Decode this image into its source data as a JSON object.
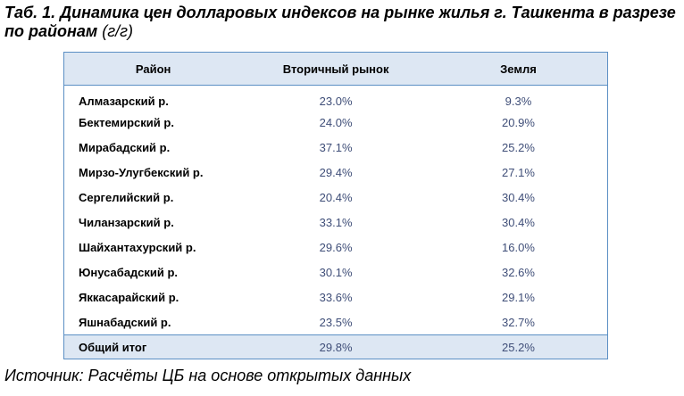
{
  "title": {
    "main": "Таб. 1. Динамика цен долларовых индексов на рынке жилья г. Ташкента в разрезе по районам",
    "unit": "(г/г)"
  },
  "table": {
    "headers": [
      "Район",
      "Вторичный рынок",
      "Земля"
    ],
    "rows": [
      {
        "district": "Алмазарский р.",
        "secondary": "23.0%",
        "land": "9.3%"
      },
      {
        "district": "Бектемирский р.",
        "secondary": "24.0%",
        "land": "20.9%"
      },
      {
        "district": "Мирабадский р.",
        "secondary": "37.1%",
        "land": "25.2%"
      },
      {
        "district": "Мирзо-Улугбекский р.",
        "secondary": "29.4%",
        "land": "27.1%"
      },
      {
        "district": "Сергелийский р.",
        "secondary": "20.4%",
        "land": "30.4%"
      },
      {
        "district": "Чиланзарский р.",
        "secondary": "33.1%",
        "land": "30.4%"
      },
      {
        "district": "Шайхантахурский р.",
        "secondary": "29.6%",
        "land": "16.0%"
      },
      {
        "district": "Юнусабадский р.",
        "secondary": "30.1%",
        "land": "32.6%"
      },
      {
        "district": "Яккасарайский р.",
        "secondary": "33.6%",
        "land": "29.1%"
      },
      {
        "district": "Яшнабадский р.",
        "secondary": "23.5%",
        "land": "32.7%"
      }
    ],
    "total": {
      "district": "Общий итог",
      "secondary": "29.8%",
      "land": "25.2%"
    }
  },
  "source": "Источник: Расчёты ЦБ на основе открытых данных",
  "colors": {
    "header_bg": "#dde7f3",
    "border": "#5b8fc4",
    "value_text": "#3f4e78"
  }
}
